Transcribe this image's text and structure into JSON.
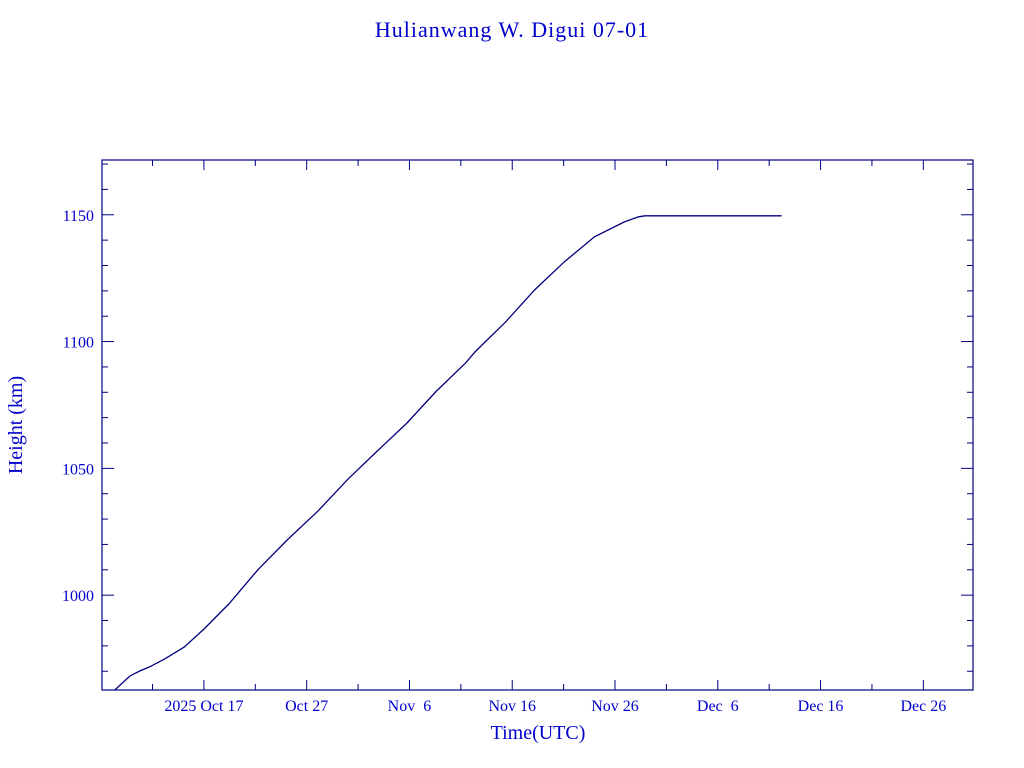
{
  "chart_data": {
    "type": "line",
    "title": "Hulianwang W. Digui 07-01",
    "xlabel": "Time(UTC)",
    "ylabel": "Height (km)",
    "xlim": [
      "2025-10-07T02:00",
      "2025-12-30T20:00"
    ],
    "ylim": [
      962.6,
      1171.6
    ],
    "grid": false,
    "x_ticks": [
      {
        "date": "2025-10-17",
        "label": "2025 Oct 17"
      },
      {
        "date": "2025-10-27",
        "label": "Oct 27"
      },
      {
        "date": "2025-11-06",
        "label": "Nov  6"
      },
      {
        "date": "2025-11-16",
        "label": "Nov 16"
      },
      {
        "date": "2025-11-26",
        "label": "Nov 26"
      },
      {
        "date": "2025-12-06",
        "label": "Dec  6"
      },
      {
        "date": "2025-12-16",
        "label": "Dec 16"
      },
      {
        "date": "2025-12-26",
        "label": "Dec 26"
      }
    ],
    "y_ticks": [
      {
        "value": 1000,
        "label": "1000"
      },
      {
        "value": 1050,
        "label": "1050"
      },
      {
        "value": 1100,
        "label": "1100"
      },
      {
        "value": 1150,
        "label": "1150"
      }
    ],
    "line_color": "#000080",
    "text_color": "#0000cc",
    "series": [
      {
        "x": [
          "2025-10-08T08:00",
          "2025-10-09T19:00",
          "2025-10-10T18:00",
          "2025-10-11T17:00",
          "2025-10-13T04:00",
          "2025-10-15T02:00",
          "2025-10-17T00:00",
          "2025-10-19T10:00",
          "2025-10-22T07:00",
          "2025-10-25T04:00",
          "2025-10-28T02:00",
          "2025-10-31T00:00",
          "2025-11-02T20:00",
          "2025-11-05T17:00",
          "2025-11-08T14:00",
          "2025-11-11T12:00",
          "2025-11-12T10:00",
          "2025-11-15T07:00",
          "2025-11-18T05:00",
          "2025-11-21T02:00",
          "2025-11-24T00:00",
          "2025-11-26T22:00",
          "2025-11-28T07:00",
          "2025-11-28T22:00",
          "2025-12-12T05:00"
        ],
        "y": [
          962.6,
          968.1,
          970.1,
          971.7,
          974.8,
          979.5,
          986.6,
          996.5,
          1010.2,
          1022.0,
          1033.1,
          1045.7,
          1056.7,
          1067.7,
          1080.3,
          1091.7,
          1096.1,
          1107.5,
          1120.5,
          1131.5,
          1141.3,
          1147.2,
          1149.2,
          1149.6,
          1149.6
        ]
      }
    ]
  }
}
